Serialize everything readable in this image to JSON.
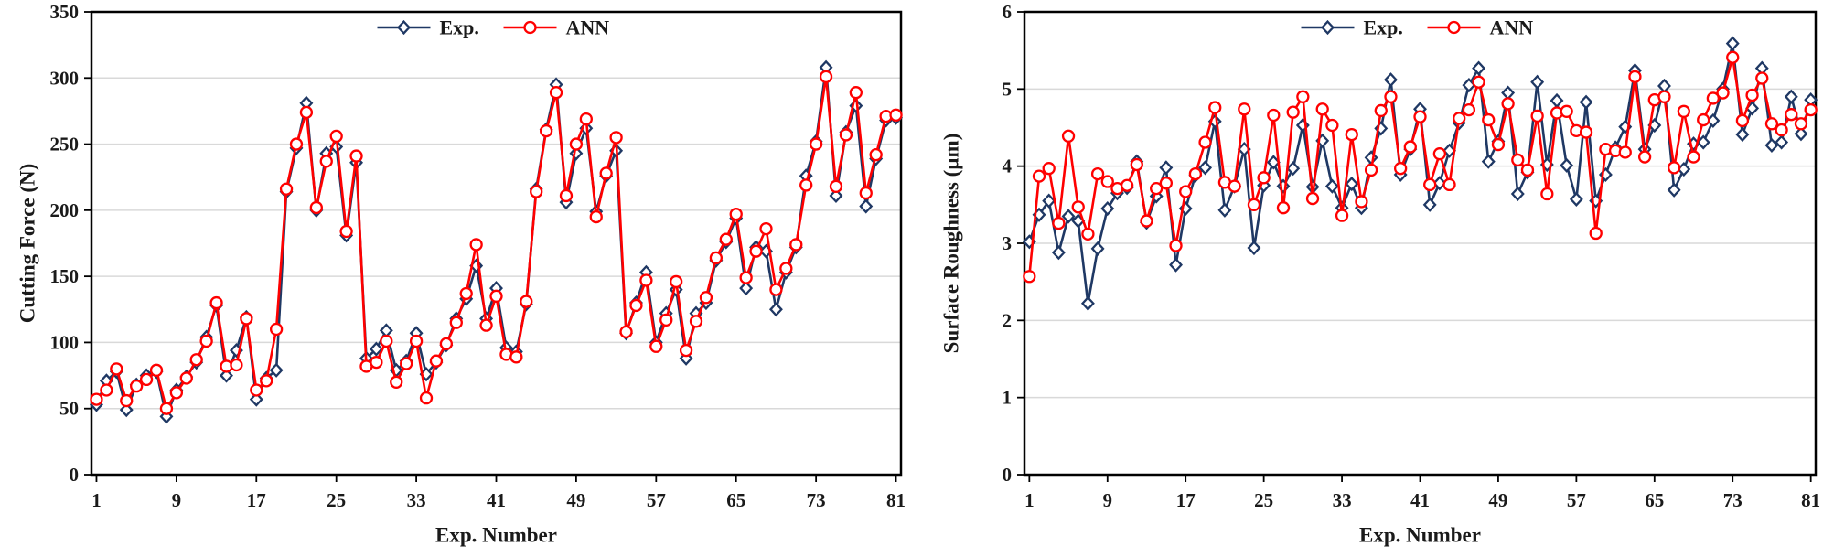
{
  "figure": {
    "background": "#ffffff",
    "description_colors": {
      "exp_series": "#1f3864",
      "ann_series": "#ff0000",
      "gridline": "#d9d9d9",
      "axis": "#000000",
      "marker_fill": "#ffffff"
    }
  },
  "chart_data": [
    {
      "type": "line",
      "title": "",
      "xlabel": "Exp. Number",
      "ylabel": "Cutting Force (N)",
      "ylim": [
        0,
        350
      ],
      "yticks": [
        0,
        50,
        100,
        150,
        200,
        250,
        300,
        350
      ],
      "xticks": [
        1,
        9,
        17,
        25,
        33,
        41,
        49,
        57,
        65,
        73,
        81
      ],
      "x_range": [
        1,
        81
      ],
      "grid": "horizontal",
      "legend_position": "top-center",
      "series": [
        {
          "name": "Exp.",
          "marker": "diamond",
          "color": "#1f3864",
          "values": [
            53,
            71,
            78,
            49,
            68,
            75,
            78,
            44,
            64,
            74,
            85,
            104,
            128,
            75,
            94,
            119,
            57,
            73,
            79,
            214,
            247,
            281,
            200,
            243,
            248,
            181,
            236,
            88,
            95,
            109,
            79,
            86,
            107,
            76,
            85,
            98,
            118,
            133,
            158,
            118,
            141,
            96,
            93,
            129,
            216,
            261,
            295,
            206,
            243,
            262,
            199,
            226,
            245,
            107,
            130,
            153,
            100,
            122,
            140,
            88,
            122,
            130,
            162,
            176,
            194,
            141,
            172,
            169,
            125,
            153,
            172,
            226,
            252,
            308,
            211,
            259,
            279,
            203,
            239,
            268,
            270
          ]
        },
        {
          "name": "ANN",
          "marker": "circle",
          "color": "#ff0000",
          "values": [
            57,
            64,
            80,
            56,
            67,
            72,
            79,
            50,
            62,
            73,
            87,
            101,
            130,
            82,
            83,
            118,
            64,
            71,
            110,
            216,
            250,
            274,
            202,
            237,
            256,
            184,
            241,
            82,
            85,
            101,
            70,
            84,
            101,
            58,
            86,
            99,
            115,
            137,
            174,
            113,
            135,
            91,
            89,
            131,
            214,
            260,
            289,
            211,
            250,
            269,
            195,
            228,
            255,
            108,
            128,
            147,
            97,
            117,
            146,
            94,
            116,
            134,
            164,
            178,
            197,
            149,
            169,
            186,
            140,
            156,
            174,
            219,
            250,
            301,
            218,
            257,
            289,
            213,
            242,
            271,
            272
          ]
        }
      ]
    },
    {
      "type": "line",
      "title": "",
      "xlabel": "Exp. Number",
      "ylabel": "Surface Roughness (µm)",
      "ylim": [
        0,
        6
      ],
      "yticks": [
        0,
        1,
        2,
        3,
        4,
        5,
        6
      ],
      "xticks": [
        1,
        9,
        17,
        25,
        33,
        41,
        49,
        57,
        65,
        73,
        81
      ],
      "x_range": [
        1,
        81
      ],
      "grid": "horizontal",
      "legend_position": "top-center",
      "series": [
        {
          "name": "Exp.",
          "marker": "diamond",
          "color": "#1f3864",
          "values": [
            3.02,
            3.37,
            3.55,
            2.88,
            3.35,
            3.29,
            2.22,
            2.93,
            3.45,
            3.65,
            3.72,
            4.06,
            3.27,
            3.61,
            3.98,
            2.72,
            3.45,
            3.88,
            3.98,
            4.58,
            3.43,
            3.74,
            4.22,
            2.94,
            3.75,
            4.05,
            3.74,
            3.97,
            4.53,
            3.73,
            4.33,
            3.74,
            3.46,
            3.77,
            3.46,
            4.11,
            4.49,
            5.12,
            3.89,
            4.22,
            4.74,
            3.5,
            3.78,
            4.2,
            4.56,
            5.05,
            5.27,
            4.06,
            4.32,
            4.95,
            3.64,
            3.92,
            5.09,
            4.02,
            4.85,
            4.01,
            3.57,
            4.83,
            3.55,
            3.89,
            4.24,
            4.51,
            5.24,
            4.22,
            4.53,
            5.04,
            3.69,
            3.96,
            4.29,
            4.31,
            4.59,
            5.0,
            5.59,
            4.41,
            4.75,
            5.27,
            4.27,
            4.31,
            4.9,
            4.42,
            4.86
          ]
        },
        {
          "name": "ANN",
          "marker": "circle",
          "color": "#ff0000",
          "values": [
            2.57,
            3.87,
            3.97,
            3.26,
            4.39,
            3.47,
            3.12,
            3.9,
            3.8,
            3.71,
            3.75,
            4.02,
            3.29,
            3.71,
            3.78,
            2.97,
            3.67,
            3.9,
            4.31,
            4.76,
            3.79,
            3.74,
            4.74,
            3.5,
            3.85,
            4.66,
            3.46,
            4.7,
            4.9,
            3.58,
            4.74,
            4.53,
            3.36,
            4.41,
            3.54,
            3.95,
            4.72,
            4.9,
            3.97,
            4.25,
            4.64,
            3.76,
            4.16,
            3.76,
            4.62,
            4.73,
            5.09,
            4.6,
            4.28,
            4.81,
            4.08,
            3.95,
            4.65,
            3.64,
            4.69,
            4.71,
            4.46,
            4.44,
            3.13,
            4.22,
            4.2,
            4.18,
            5.16,
            4.12,
            4.86,
            4.9,
            3.98,
            4.71,
            4.12,
            4.6,
            4.88,
            4.95,
            5.41,
            4.59,
            4.92,
            5.14,
            4.55,
            4.47,
            4.67,
            4.55,
            4.73
          ]
        }
      ]
    }
  ]
}
